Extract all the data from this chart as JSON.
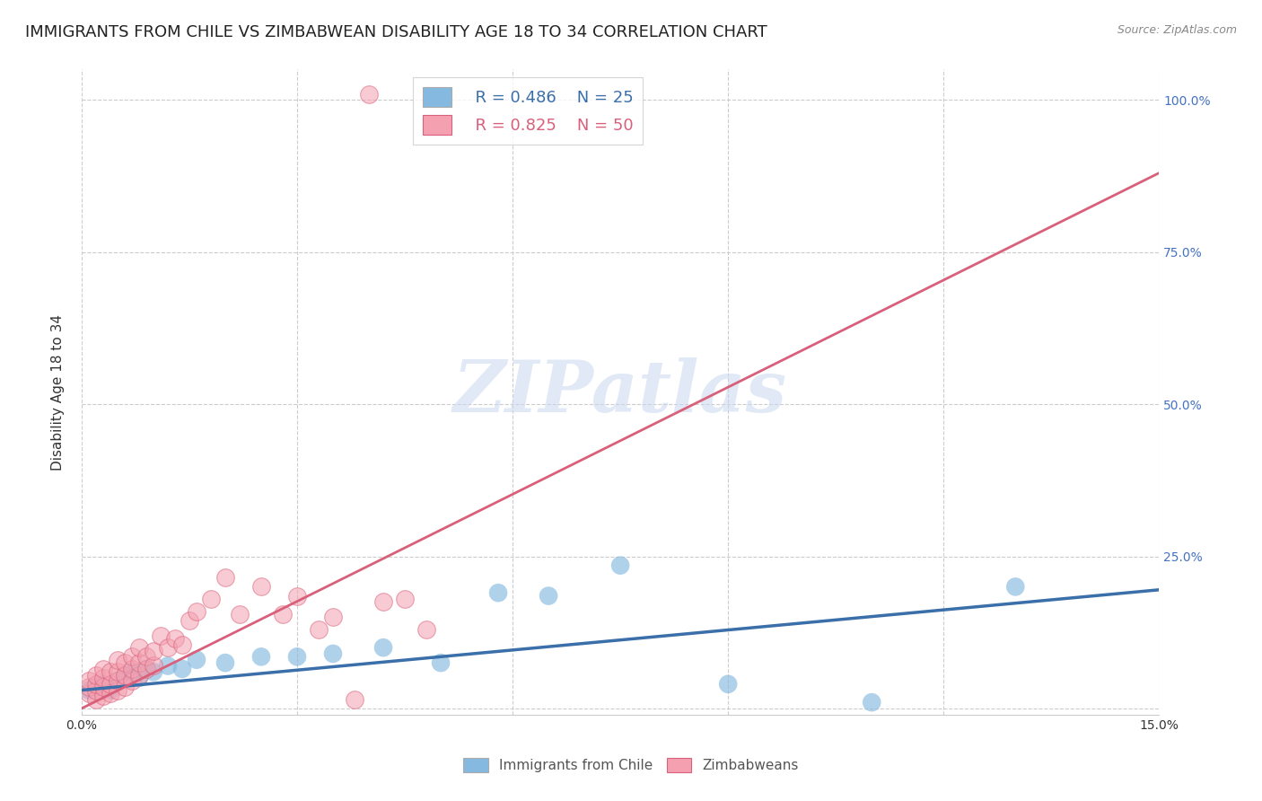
{
  "title": "IMMIGRANTS FROM CHILE VS ZIMBABWEAN DISABILITY AGE 18 TO 34 CORRELATION CHART",
  "source": "Source: ZipAtlas.com",
  "ylabel_label": "Disability Age 18 to 34",
  "xlim": [
    0.0,
    0.15
  ],
  "ylim": [
    -0.01,
    1.05
  ],
  "xtick_positions": [
    0.0,
    0.03,
    0.06,
    0.09,
    0.12,
    0.15
  ],
  "xticklabels": [
    "0.0%",
    "",
    "",
    "",
    "",
    "15.0%"
  ],
  "ytick_positions": [
    0.0,
    0.25,
    0.5,
    0.75,
    1.0
  ],
  "yticklabels_right": [
    "",
    "25.0%",
    "50.0%",
    "75.0%",
    "100.0%"
  ],
  "blue_R": 0.486,
  "blue_N": 25,
  "pink_R": 0.825,
  "pink_N": 50,
  "blue_color": "#85b9e0",
  "pink_color": "#f4a0b0",
  "blue_line_color": "#3a6faa",
  "pink_line_color": "#d9607a",
  "watermark_text": "ZIPatlas",
  "blue_line_x0": 0.0,
  "blue_line_y0": 0.03,
  "blue_line_x1": 0.15,
  "blue_line_y1": 0.195,
  "pink_line_x0": 0.0,
  "pink_line_y0": 0.0,
  "pink_line_x1": 0.15,
  "pink_line_y1": 0.88,
  "blue_scatter_x": [
    0.001,
    0.002,
    0.003,
    0.004,
    0.005,
    0.006,
    0.007,
    0.008,
    0.009,
    0.01,
    0.012,
    0.014,
    0.016,
    0.02,
    0.025,
    0.03,
    0.035,
    0.042,
    0.05,
    0.058,
    0.065,
    0.075,
    0.09,
    0.11,
    0.13
  ],
  "blue_scatter_y": [
    0.03,
    0.035,
    0.04,
    0.03,
    0.045,
    0.055,
    0.06,
    0.05,
    0.065,
    0.06,
    0.07,
    0.065,
    0.08,
    0.075,
    0.085,
    0.085,
    0.09,
    0.1,
    0.075,
    0.19,
    0.185,
    0.235,
    0.04,
    0.01,
    0.2
  ],
  "pink_scatter_x": [
    0.001,
    0.001,
    0.001,
    0.002,
    0.002,
    0.002,
    0.002,
    0.003,
    0.003,
    0.003,
    0.003,
    0.004,
    0.004,
    0.004,
    0.005,
    0.005,
    0.005,
    0.005,
    0.006,
    0.006,
    0.006,
    0.007,
    0.007,
    0.007,
    0.008,
    0.008,
    0.008,
    0.009,
    0.009,
    0.01,
    0.01,
    0.011,
    0.012,
    0.013,
    0.014,
    0.015,
    0.016,
    0.018,
    0.02,
    0.022,
    0.025,
    0.028,
    0.03,
    0.033,
    0.035,
    0.038,
    0.04,
    0.042,
    0.045,
    0.048
  ],
  "pink_scatter_y": [
    0.025,
    0.035,
    0.045,
    0.015,
    0.03,
    0.04,
    0.055,
    0.02,
    0.035,
    0.05,
    0.065,
    0.025,
    0.04,
    0.06,
    0.03,
    0.045,
    0.06,
    0.08,
    0.035,
    0.055,
    0.075,
    0.045,
    0.065,
    0.085,
    0.055,
    0.075,
    0.1,
    0.065,
    0.085,
    0.07,
    0.095,
    0.12,
    0.1,
    0.115,
    0.105,
    0.145,
    0.16,
    0.18,
    0.215,
    0.155,
    0.2,
    0.155,
    0.185,
    0.13,
    0.15,
    0.015,
    1.01,
    0.175,
    0.18,
    0.13
  ],
  "grid_color": "#cccccc",
  "background_color": "#ffffff",
  "title_fontsize": 13,
  "axis_label_fontsize": 11,
  "tick_fontsize": 10,
  "legend_fontsize": 13
}
